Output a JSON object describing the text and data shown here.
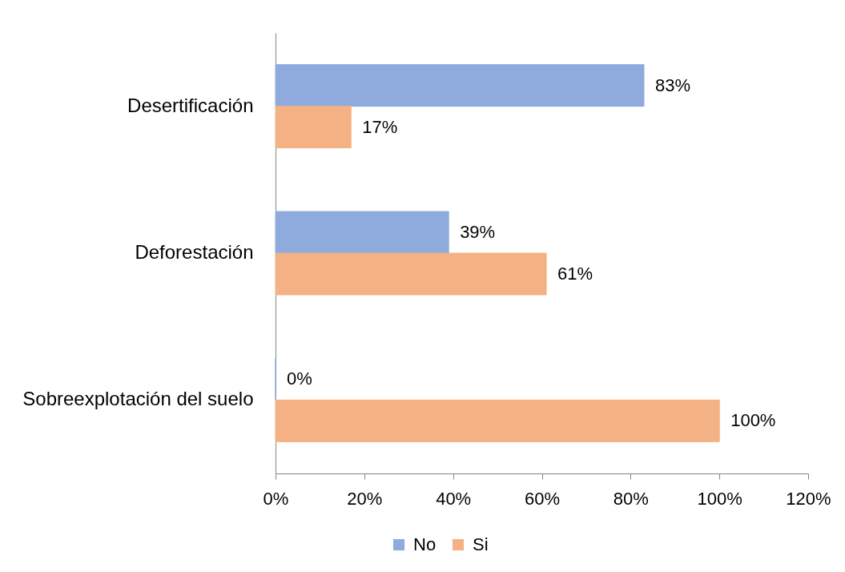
{
  "chart_data": {
    "type": "bar",
    "orientation": "horizontal",
    "categories": [
      "Desertificación",
      "Deforestación",
      "Sobreexplotación del suelo"
    ],
    "series": [
      {
        "name": "No",
        "color": "#8faadc",
        "values": [
          83,
          39,
          0
        ],
        "value_labels": [
          "83%",
          "39%",
          "0%"
        ]
      },
      {
        "name": "Si",
        "color": "#f4b183",
        "values": [
          17,
          61,
          100
        ],
        "value_labels": [
          "17%",
          "61%",
          "100%"
        ]
      }
    ],
    "xlim": [
      0,
      120
    ],
    "xticks": [
      {
        "value": 0,
        "label": "0%"
      },
      {
        "value": 20,
        "label": "20%"
      },
      {
        "value": 40,
        "label": "40%"
      },
      {
        "value": 60,
        "label": "60%"
      },
      {
        "value": 80,
        "label": "80%"
      },
      {
        "value": 100,
        "label": "100%"
      },
      {
        "value": 120,
        "label": "120%"
      }
    ],
    "legend": "bottom",
    "grid": false
  }
}
